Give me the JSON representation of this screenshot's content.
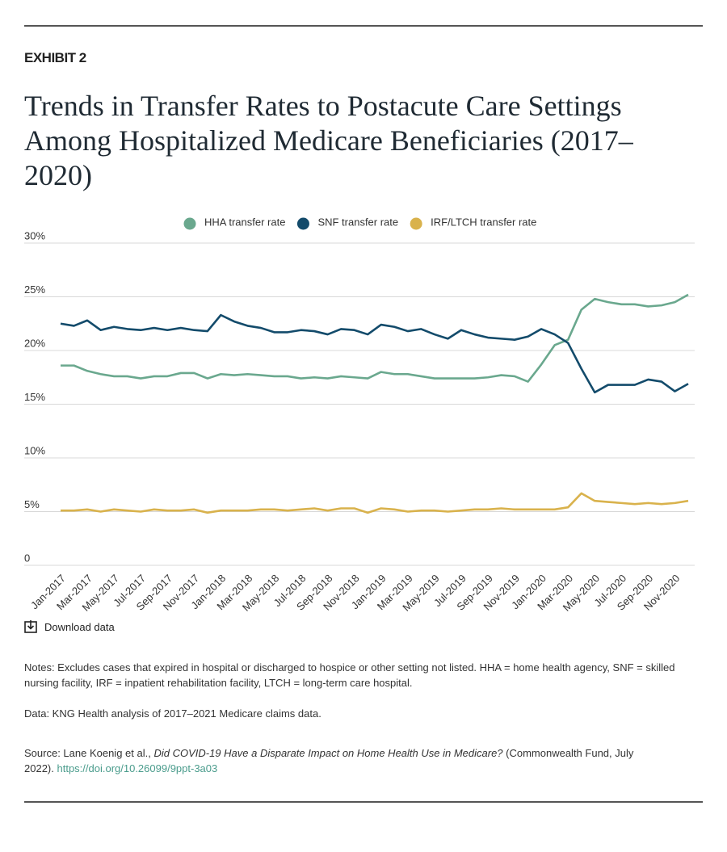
{
  "exhibit": "EXHIBIT 2",
  "chart_data": {
    "type": "line",
    "title": "Trends in Transfer Rates to Postacute Care Settings Among Hospitalized Medicare Beneficiaries (2017–2020)",
    "categories": [
      "Jan-2017",
      null,
      "Mar-2017",
      null,
      "May-2017",
      null,
      "Jul-2017",
      null,
      "Sep-2017",
      null,
      "Nov-2017",
      null,
      "Jan-2018",
      null,
      "Mar-2018",
      null,
      "May-2018",
      null,
      "Jul-2018",
      null,
      "Sep-2018",
      null,
      "Nov-2018",
      null,
      "Jan-2019",
      null,
      "Mar-2019",
      null,
      "May-2019",
      null,
      "Jul-2019",
      null,
      "Sep-2019",
      null,
      "Nov-2019",
      null,
      "Jan-2020",
      null,
      "Mar-2020",
      null,
      "May-2020",
      null,
      "Jul-2020",
      null,
      "Sep-2020",
      null,
      "Nov-2020",
      null
    ],
    "series": [
      {
        "name": "HHA transfer rate",
        "color": "#6aa88e",
        "values": [
          18.6,
          18.6,
          18.1,
          17.8,
          17.6,
          17.6,
          17.4,
          17.6,
          17.6,
          17.9,
          17.9,
          17.4,
          17.8,
          17.7,
          17.8,
          17.7,
          17.6,
          17.6,
          17.4,
          17.5,
          17.4,
          17.6,
          17.5,
          17.4,
          18.0,
          17.8,
          17.8,
          17.6,
          17.4,
          17.4,
          17.4,
          17.4,
          17.5,
          17.7,
          17.6,
          17.1,
          18.7,
          20.5,
          21.0,
          23.8,
          24.8,
          24.5,
          24.3,
          24.3,
          24.1,
          24.2,
          24.5,
          25.2
        ]
      },
      {
        "name": "SNF transfer rate",
        "color": "#134b6b",
        "values": [
          22.5,
          22.3,
          22.8,
          21.9,
          22.2,
          22.0,
          21.9,
          22.1,
          21.9,
          22.1,
          21.9,
          21.8,
          23.3,
          22.7,
          22.3,
          22.1,
          21.7,
          21.7,
          21.9,
          21.8,
          21.5,
          22.0,
          21.9,
          21.5,
          22.4,
          22.2,
          21.8,
          22.0,
          21.5,
          21.1,
          21.9,
          21.5,
          21.2,
          21.1,
          21.0,
          21.3,
          22.0,
          21.5,
          20.7,
          18.3,
          16.1,
          16.8,
          16.8,
          16.8,
          17.3,
          17.1,
          16.2,
          16.9
        ]
      },
      {
        "name": "IRF/LTCH transfer rate",
        "color": "#d9b24c",
        "values": [
          5.1,
          5.1,
          5.2,
          5.0,
          5.2,
          5.1,
          5.0,
          5.2,
          5.1,
          5.1,
          5.2,
          4.9,
          5.1,
          5.1,
          5.1,
          5.2,
          5.2,
          5.1,
          5.2,
          5.3,
          5.1,
          5.3,
          5.3,
          4.9,
          5.3,
          5.2,
          5.0,
          5.1,
          5.1,
          5.0,
          5.1,
          5.2,
          5.2,
          5.3,
          5.2,
          5.2,
          5.2,
          5.2,
          5.4,
          6.7,
          6.0,
          5.9,
          5.8,
          5.7,
          5.8,
          5.7,
          5.8,
          6.0
        ]
      }
    ],
    "ylim": [
      0,
      30
    ],
    "yticks": [
      0,
      {
        "value": 5,
        "label": "5%"
      },
      {
        "value": 10,
        "label": "10%"
      },
      {
        "value": 15,
        "label": "15%"
      },
      {
        "value": 20,
        "label": "20%"
      },
      {
        "value": 25,
        "label": "25%"
      },
      {
        "value": 30,
        "label": "30%"
      }
    ],
    "grid": true
  },
  "download": "Download data",
  "notes": "Notes: Excludes cases that expired in hospital or discharged to hospice or other setting not listed. HHA = home health agency, SNF = skilled nursing facility, IRF = inpatient rehabilitation facility, LTCH = long-term care hospital.",
  "data_note": "Data: KNG Health analysis of 2017–2021 Medicare claims data.",
  "source": {
    "prefix": "Source: Lane Koenig et al., ",
    "title": "Did COVID-19 Have a Disparate Impact on Home Health Use in Medicare?",
    "suffix": " (Commonwealth Fund, July 2022). ",
    "link": "https://doi.org/10.26099/9ppt-3a03"
  }
}
